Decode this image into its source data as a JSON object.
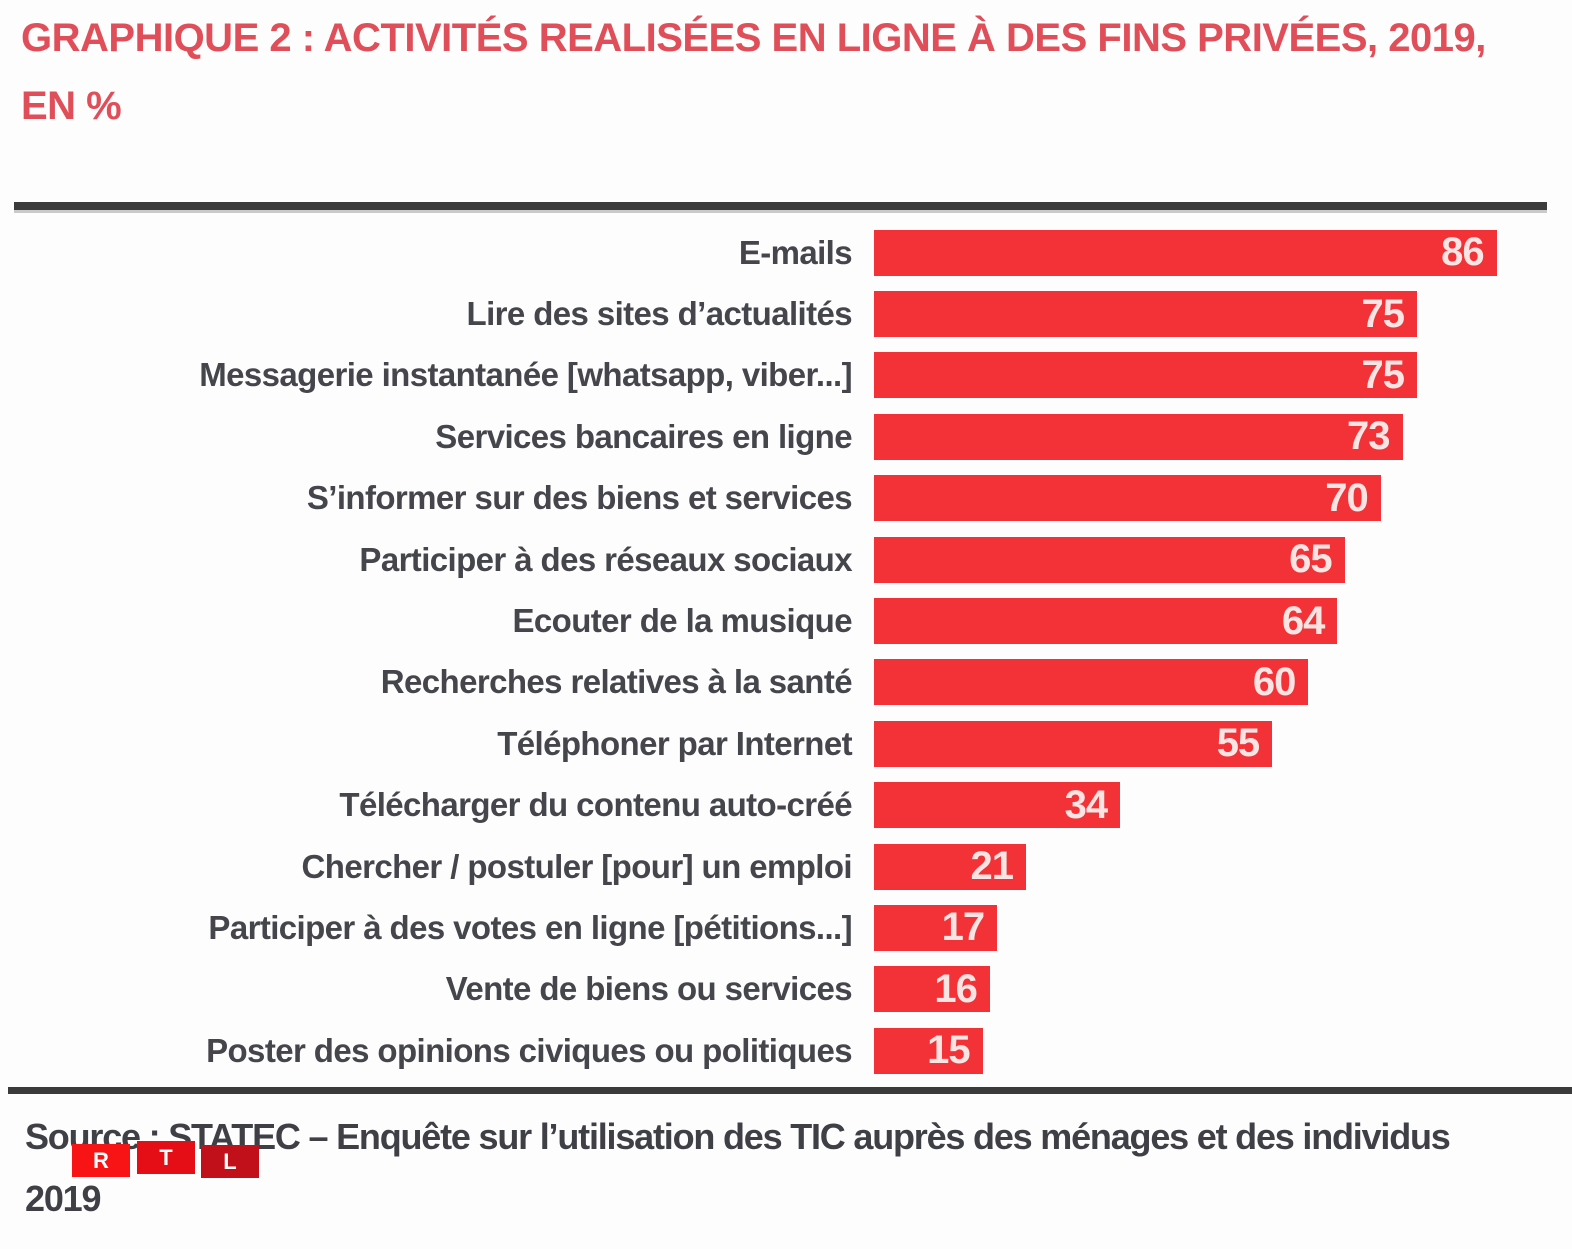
{
  "title": {
    "line1": "GRAPHIQUE 2 : ACTIVITÉS REALISÉES EN LIGNE À DES FINS PRIVÉES, 2019,",
    "line2": "EN %"
  },
  "chart_data": {
    "type": "bar",
    "orientation": "horizontal",
    "title": "GRAPHIQUE 2 : ACTIVITÉS REALISÉES EN LIGNE À DES FINS PRIVÉES, 2019, EN %",
    "xlabel": "",
    "ylabel": "",
    "xlim": [
      0,
      100
    ],
    "grid": false,
    "legend": false,
    "data_labels": "inside-end",
    "bar_color": "#f23237",
    "value_label_color": "#f7e4e3",
    "categories": [
      "E-mails",
      "Lire des sites d’actualités",
      "Messagerie instantanée [whatsapp, viber...]",
      "Services bancaires en ligne",
      "S’informer sur des biens et services",
      "Participer à des réseaux sociaux",
      "Ecouter de la musique",
      "Recherches relatives à la santé",
      "Téléphoner par Internet",
      "Télécharger du contenu auto-créé",
      "Chercher / postuler [pour] un emploi",
      "Participer à des votes en ligne [pétitions...]",
      "Vente de biens ou services",
      "Poster des opinions civiques ou politiques"
    ],
    "values": [
      86,
      75,
      75,
      73,
      70,
      65,
      64,
      60,
      55,
      34,
      21,
      17,
      16,
      15
    ]
  },
  "source": {
    "line1": "Source : STATEC – Enquête sur l’utilisation des TIC auprès des ménages et des individus",
    "line2": "2019"
  },
  "logo": {
    "name": "RTL",
    "letters": [
      {
        "char": "R",
        "color": "#f81414"
      },
      {
        "char": "T",
        "color": "#e50e16"
      },
      {
        "char": "L",
        "color": "#c11019"
      }
    ]
  },
  "colors": {
    "title_red": "#e04f59",
    "label_gray": "#45464c",
    "source_gray": "#3e4046",
    "divider_dark": "#3b3b3b",
    "background": "#fdfdfd"
  }
}
